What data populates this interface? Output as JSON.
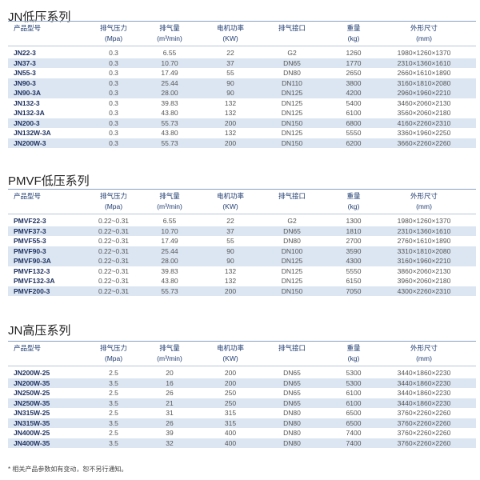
{
  "headers": [
    {
      "line1": "产品型号",
      "line2": ""
    },
    {
      "line1": "排气压力",
      "line2": "(Mpa)"
    },
    {
      "line1": "排气量",
      "line2": "(m³/min)"
    },
    {
      "line1": "电机功率",
      "line2": "(KW)"
    },
    {
      "line1": "排气接口",
      "line2": ""
    },
    {
      "line1": "重量",
      "line2": "(kg)"
    },
    {
      "line1": "外形尺寸",
      "line2": "(mm)"
    }
  ],
  "colors": {
    "row_shade": "#dce6f2",
    "header_text": "#1f3c70",
    "model_text": "#1c2f5e"
  },
  "sections": [
    {
      "title": "JN低压系列",
      "rows": [
        {
          "shaded": false,
          "cells": [
            "JN22-3",
            "0.3",
            "6.55",
            "22",
            "G2",
            "1260",
            "1980×1260×1370"
          ]
        },
        {
          "shaded": true,
          "cells": [
            "JN37-3",
            "0.3",
            "10.70",
            "37",
            "DN65",
            "1770",
            "2310×1360×1610"
          ]
        },
        {
          "shaded": false,
          "cells": [
            "JN55-3",
            "0.3",
            "17.49",
            "55",
            "DN80",
            "2650",
            "2660×1610×1890"
          ]
        },
        {
          "shaded": true,
          "cells": [
            "JN90-3",
            "0.3",
            "25.44",
            "90",
            "DN110",
            "3800",
            "3160×1810×2080"
          ]
        },
        {
          "shaded": true,
          "cells": [
            "JN90-3A",
            "0.3",
            "28.00",
            "90",
            "DN125",
            "4200",
            "2960×1960×2210"
          ]
        },
        {
          "shaded": false,
          "cells": [
            "JN132-3",
            "0.3",
            "39.83",
            "132",
            "DN125",
            "5400",
            "3460×2060×2130"
          ]
        },
        {
          "shaded": false,
          "cells": [
            "JN132-3A",
            "0.3",
            "43.80",
            "132",
            "DN125",
            "6100",
            "3560×2060×2180"
          ]
        },
        {
          "shaded": true,
          "cells": [
            "JN200-3",
            "0.3",
            "55.73",
            "200",
            "DN150",
            "6800",
            "4160×2260×2310"
          ]
        },
        {
          "shaded": false,
          "cells": [
            "JN132W-3A",
            "0.3",
            "43.80",
            "132",
            "DN125",
            "5550",
            "3360×1960×2250"
          ]
        },
        {
          "shaded": true,
          "cells": [
            "JN200W-3",
            "0.3",
            "55.73",
            "200",
            "DN150",
            "6200",
            "3660×2260×2260"
          ]
        }
      ]
    },
    {
      "title": "PMVF低压系列",
      "rows": [
        {
          "shaded": false,
          "cells": [
            "PMVF22-3",
            "0.22~0.31",
            "6.55",
            "22",
            "G2",
            "1300",
            "1980×1260×1370"
          ]
        },
        {
          "shaded": true,
          "cells": [
            "PMVF37-3",
            "0.22~0.31",
            "10.70",
            "37",
            "DN65",
            "1810",
            "2310×1360×1610"
          ]
        },
        {
          "shaded": false,
          "cells": [
            "PMVF55-3",
            "0.22~0.31",
            "17.49",
            "55",
            "DN80",
            "2700",
            "2760×1610×1890"
          ]
        },
        {
          "shaded": true,
          "cells": [
            "PMVF90-3",
            "0.22~0.31",
            "25.44",
            "90",
            "DN100",
            "3590",
            "3310×1810×2080"
          ]
        },
        {
          "shaded": true,
          "cells": [
            "PMVF90-3A",
            "0.22~0.31",
            "28.00",
            "90",
            "DN125",
            "4300",
            "3160×1960×2210"
          ]
        },
        {
          "shaded": false,
          "cells": [
            "PMVF132-3",
            "0.22~0.31",
            "39.83",
            "132",
            "DN125",
            "5550",
            "3860×2060×2130"
          ]
        },
        {
          "shaded": false,
          "cells": [
            "PMVF132-3A",
            "0.22~0.31",
            "43.80",
            "132",
            "DN125",
            "6150",
            "3960×2060×2180"
          ]
        },
        {
          "shaded": true,
          "cells": [
            "PMVF200-3",
            "0.22~0.31",
            "55.73",
            "200",
            "DN150",
            "7050",
            "4300×2260×2310"
          ]
        }
      ]
    },
    {
      "title": "JN高压系列",
      "rows": [
        {
          "shaded": false,
          "cells": [
            "JN200W-25",
            "2.5",
            "20",
            "200",
            "DN65",
            "5300",
            "3440×1860×2230"
          ]
        },
        {
          "shaded": true,
          "cells": [
            "JN200W-35",
            "3.5",
            "16",
            "200",
            "DN65",
            "5300",
            "3440×1860×2230"
          ]
        },
        {
          "shaded": false,
          "cells": [
            "JN250W-25",
            "2.5",
            "26",
            "250",
            "DN65",
            "6100",
            "3440×1860×2230"
          ]
        },
        {
          "shaded": true,
          "cells": [
            "JN250W-35",
            "3.5",
            "21",
            "250",
            "DN65",
            "6100",
            "3440×1860×2230"
          ]
        },
        {
          "shaded": false,
          "cells": [
            "JN315W-25",
            "2.5",
            "31",
            "315",
            "DN80",
            "6500",
            "3760×2260×2260"
          ]
        },
        {
          "shaded": true,
          "cells": [
            "JN315W-35",
            "3.5",
            "26",
            "315",
            "DN80",
            "6500",
            "3760×2260×2260"
          ]
        },
        {
          "shaded": false,
          "cells": [
            "JN400W-25",
            "2.5",
            "39",
            "400",
            "DN80",
            "7400",
            "3760×2260×2260"
          ]
        },
        {
          "shaded": true,
          "cells": [
            "JN400W-35",
            "3.5",
            "32",
            "400",
            "DN80",
            "7400",
            "3760×2260×2260"
          ]
        }
      ]
    }
  ],
  "footnote": "* 相关产品参数如有变动，恕不另行通知。"
}
